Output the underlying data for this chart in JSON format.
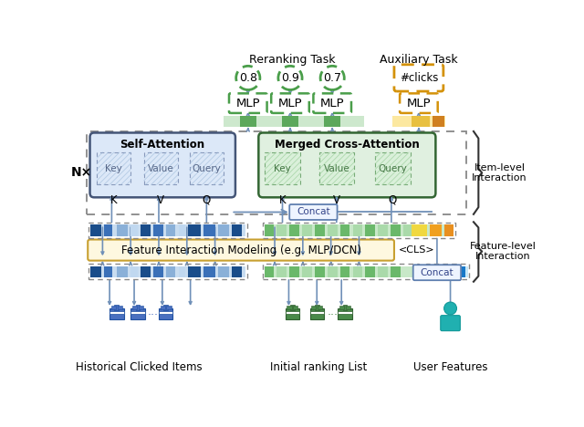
{
  "bg_color": "#ffffff",
  "reranking_task_label": "Reranking Task",
  "auxiliary_task_label": "Auxiliary Task",
  "item_level_label": "Item-level\nInteraction",
  "feature_level_label": "Feature-level\nInteraction",
  "nx_label": "N×",
  "self_attention_label": "Self-Attention",
  "merged_cross_attention_label": "Merged Cross-Attention",
  "feature_interaction_label": "Feature Interaction Modeling (e.g. MLP/DCN)",
  "cls_label": "<CLS>",
  "concat_label_1": "Concat",
  "concat_label_2": "Concat",
  "hist_label": "Historical Clicked Items",
  "init_label": "Initial ranking List",
  "user_label": "User Features",
  "green_dashed": "#4a9e4a",
  "orange_dashed": "#d4920a",
  "blue_arrow": "#7090b8",
  "sa_bg": "#dce8f8",
  "sa_border": "#445577",
  "mca_bg": "#e0f0e0",
  "mca_border": "#336633",
  "fim_bg": "#fef8e0",
  "fim_border": "#c8a030",
  "concat_border": "#6080b0",
  "brace_color": "#333333"
}
